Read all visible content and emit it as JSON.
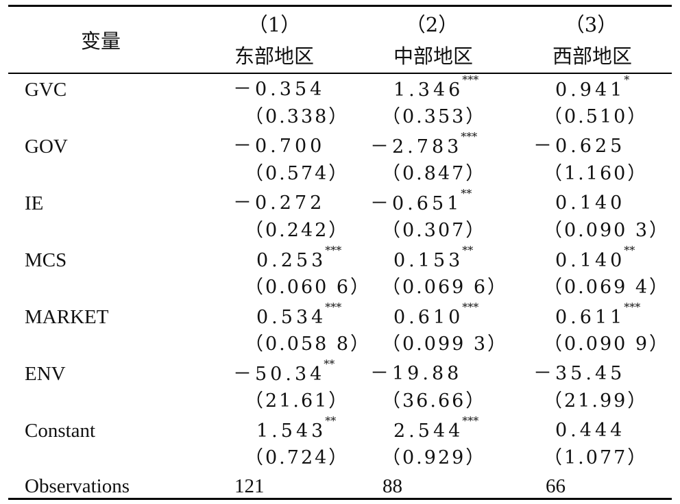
{
  "table": {
    "header": {
      "var_label": "变量",
      "columns": [
        {
          "num": "（1）",
          "name": "东部地区"
        },
        {
          "num": "（2）",
          "name": "中部地区"
        },
        {
          "num": "（3）",
          "name": "西部地区"
        }
      ]
    },
    "rows": [
      {
        "label": "GVC",
        "coef": [
          {
            "v": "－0.354",
            "s": ""
          },
          {
            "v": "1.346",
            "s": "***"
          },
          {
            "v": "0.941",
            "s": "*"
          }
        ],
        "se": [
          "（0.338）",
          "（0.353）",
          "（0.510）"
        ]
      },
      {
        "label": "GOV",
        "coef": [
          {
            "v": "－0.700",
            "s": ""
          },
          {
            "v": "－2.783",
            "s": "***"
          },
          {
            "v": "－0.625",
            "s": ""
          }
        ],
        "se": [
          "（0.574）",
          "（0.847）",
          "（1.160）"
        ]
      },
      {
        "label": "IE",
        "coef": [
          {
            "v": "－0.272",
            "s": ""
          },
          {
            "v": "－0.651",
            "s": "**"
          },
          {
            "v": "0.140",
            "s": ""
          }
        ],
        "se": [
          "（0.242）",
          "（0.307）",
          "（0.090 3）"
        ]
      },
      {
        "label": "MCS",
        "coef": [
          {
            "v": "0.253",
            "s": "***"
          },
          {
            "v": "0.153",
            "s": "**"
          },
          {
            "v": "0.140",
            "s": "**"
          }
        ],
        "se": [
          "（0.060 6）",
          "（0.069 6）",
          "（0.069 4）"
        ]
      },
      {
        "label": "MARKET",
        "coef": [
          {
            "v": "0.534",
            "s": "***"
          },
          {
            "v": "0.610",
            "s": "***"
          },
          {
            "v": "0.611",
            "s": "***"
          }
        ],
        "se": [
          "（0.058 8）",
          "（0.099 3）",
          "（0.090 9）"
        ]
      },
      {
        "label": "ENV",
        "coef": [
          {
            "v": "－50.34",
            "s": "**"
          },
          {
            "v": "－19.88",
            "s": ""
          },
          {
            "v": "－35.45",
            "s": ""
          }
        ],
        "se": [
          "（21.61）",
          "（36.66）",
          "（21.99）"
        ]
      },
      {
        "label": "Constant",
        "coef": [
          {
            "v": "1.543",
            "s": "**"
          },
          {
            "v": "2.544",
            "s": "***"
          },
          {
            "v": "0.444",
            "s": ""
          }
        ],
        "se": [
          "（0.724）",
          "（0.929）",
          "（1.077）"
        ]
      }
    ],
    "observations": {
      "label": "Observations",
      "values": [
        "121",
        "88",
        "66"
      ]
    }
  }
}
